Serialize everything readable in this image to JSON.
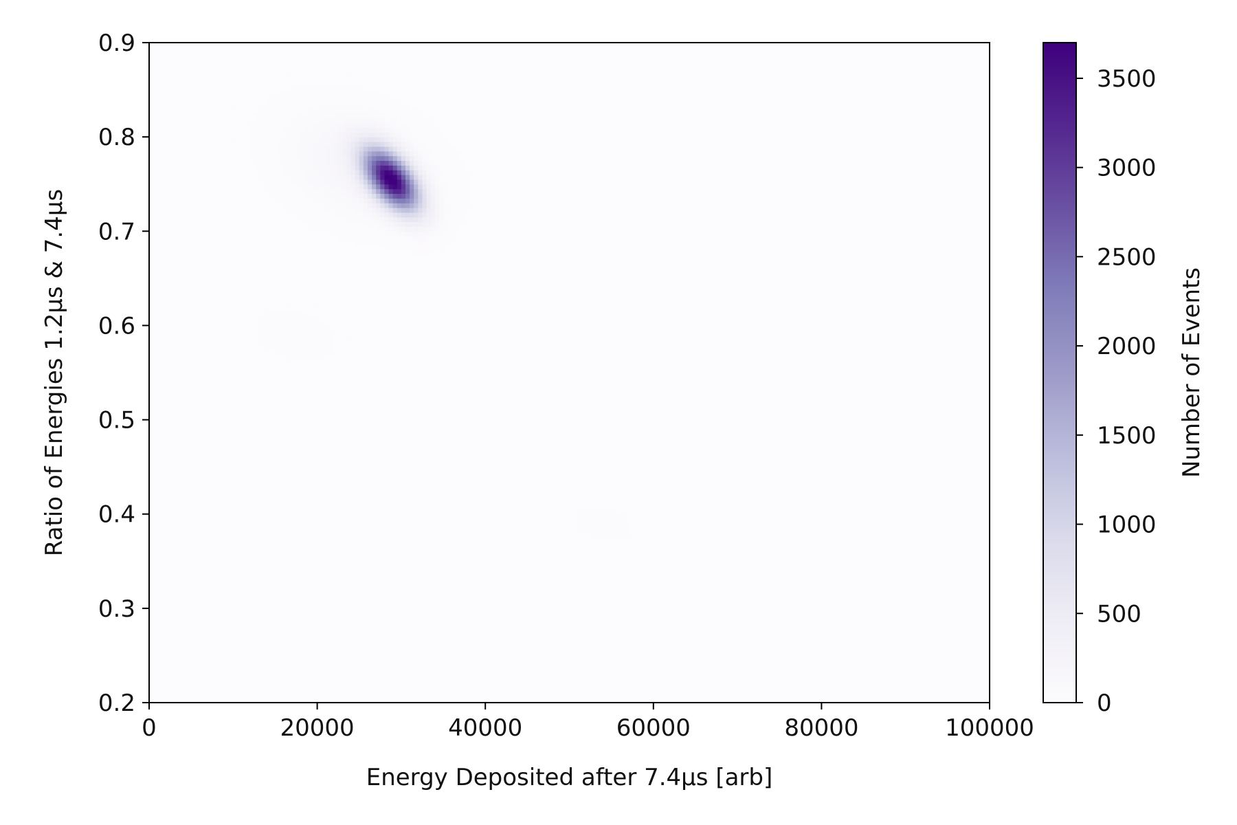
{
  "chart_data": {
    "type": "heatmap",
    "xlabel": "Energy Deposited after 7.4μs [arb]",
    "ylabel": "Ratio of Energies 1.2μs & 7.4μs",
    "xlim": [
      0,
      100000
    ],
    "ylim": [
      0.2,
      0.9
    ],
    "xticks": [
      "0",
      "20000",
      "40000",
      "60000",
      "80000",
      "100000"
    ],
    "yticks": [
      "0.2",
      "0.3",
      "0.4",
      "0.5",
      "0.6",
      "0.7",
      "0.8",
      "0.9"
    ],
    "colormap": "Purples",
    "colorbar": {
      "label": "Number of Events",
      "min": 0,
      "max": 3700,
      "ticks": [
        "0",
        "500",
        "1000",
        "1500",
        "2000",
        "2500",
        "3000",
        "3500"
      ]
    },
    "peaks": [
      {
        "x": 28800,
        "y": 0.755,
        "counts": 3700,
        "sigma_x": 2200,
        "sigma_y": 0.022,
        "rho": -0.55
      },
      {
        "x": 25000,
        "y": 0.77,
        "counts": 180,
        "sigma_x": 6000,
        "sigma_y": 0.04,
        "rho": -0.3
      },
      {
        "x": 17500,
        "y": 0.59,
        "counts": 40,
        "sigma_x": 3500,
        "sigma_y": 0.02,
        "rho": -0.3
      },
      {
        "x": 54000,
        "y": 0.39,
        "counts": 30,
        "sigma_x": 3000,
        "sigma_y": 0.015,
        "rho": -0.3
      }
    ],
    "grid": false,
    "colors": {
      "low": "#fcfbfd",
      "high": "#3f007d",
      "axis": "#000000"
    }
  }
}
